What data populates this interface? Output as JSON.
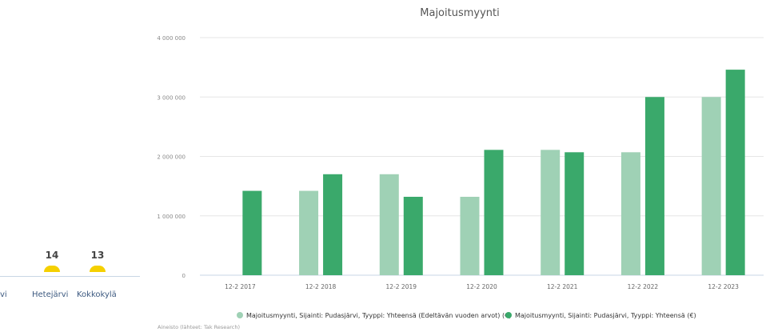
{
  "left_panel": {
    "bars": [
      {
        "value": "14",
        "label": "Hetejärvi"
      },
      {
        "value": "13",
        "label": "Kokkokylä"
      }
    ],
    "cut_label": "vi",
    "dot_color": "#f5d000"
  },
  "chart_data": {
    "type": "bar",
    "title": "Majoitusmyynti",
    "categories": [
      "12-2 2017",
      "12-2 2018",
      "12-2 2019",
      "12-2 2020",
      "12-2 2021",
      "12-2 2022",
      "12-2 2023"
    ],
    "series": [
      {
        "name": "Majoitusmyynti, Sijainti: Pudasjärvi, Tyyppi: Yhteensä (Edeltävän vuoden arvot) (€)",
        "color": "#9fd1b5",
        "values": [
          null,
          1420000,
          1700000,
          1320000,
          2110000,
          2070000,
          3000000
        ]
      },
      {
        "name": "Majoitusmyynti, Sijainti: Pudasjärvi, Tyyppi: Yhteensä (€)",
        "color": "#3aa96b",
        "values": [
          1420000,
          1700000,
          1320000,
          2110000,
          2070000,
          3000000,
          3460000
        ]
      }
    ],
    "ylim": [
      0,
      4000000
    ],
    "yticks": [
      {
        "value": 0,
        "label": "0"
      },
      {
        "value": 1000000,
        "label": "1 000 000"
      },
      {
        "value": 2000000,
        "label": "2 000 000"
      },
      {
        "value": 3000000,
        "label": "3 000 000"
      },
      {
        "value": 4000000,
        "label": "4 000 000"
      }
    ],
    "grid": true,
    "legend": "bottom",
    "source": "Aineisto (lähteet: Tak Research)"
  }
}
